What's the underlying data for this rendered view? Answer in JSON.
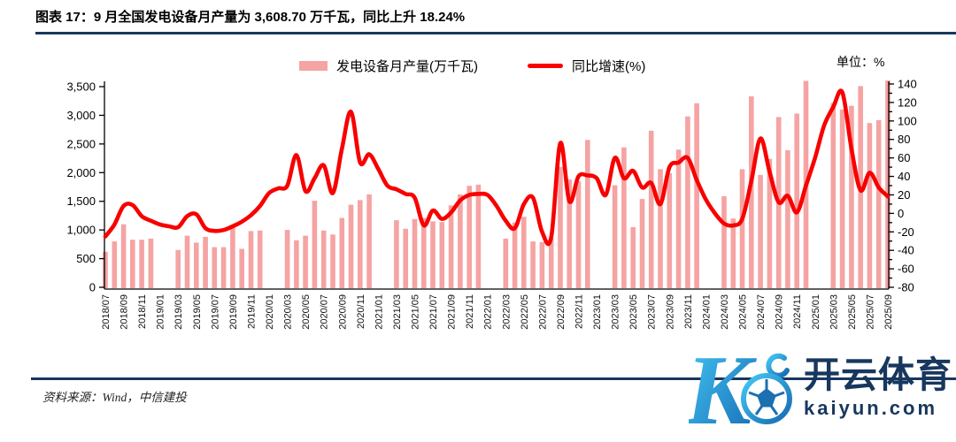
{
  "title": "图表 17：9 月全国发电设备月产量为 3,608.70  万千瓦，同比上升 18.24%",
  "legend": {
    "bar_label": "发电设备月产量(万千瓦)",
    "line_label": "同比增速(%)"
  },
  "right_axis_unit": "单位：%",
  "source": "资料来源：Wind，中信建投",
  "watermark": {
    "cn": "开云体育",
    "domain": "kaiyun.com"
  },
  "chart_data": {
    "type": "bar+line",
    "title": "9月全国发电设备月产量为3,608.70万千瓦，同比上升18.24%",
    "legend_position": "top-center",
    "grid": false,
    "x_label_every": 2,
    "months": [
      "2018/07",
      "2018/08",
      "2018/09",
      "2018/10",
      "2018/11",
      "2018/12",
      "2019/01",
      "2019/02",
      "2019/03",
      "2019/04",
      "2019/05",
      "2019/06",
      "2019/07",
      "2019/08",
      "2019/09",
      "2019/10",
      "2019/11",
      "2019/12",
      "2020/01",
      "2020/02",
      "2020/03",
      "2020/04",
      "2020/05",
      "2020/06",
      "2020/07",
      "2020/08",
      "2020/09",
      "2020/10",
      "2020/11",
      "2020/12",
      "2021/01",
      "2021/02",
      "2021/03",
      "2021/04",
      "2021/05",
      "2021/06",
      "2021/07",
      "2021/08",
      "2021/09",
      "2021/10",
      "2021/11",
      "2021/12",
      "2022/01",
      "2022/02",
      "2022/03",
      "2022/04",
      "2022/05",
      "2022/06",
      "2022/07",
      "2022/08",
      "2022/09",
      "2022/10",
      "2022/11",
      "2022/12",
      "2023/01",
      "2023/02",
      "2023/03",
      "2023/04",
      "2023/05",
      "2023/06",
      "2023/07",
      "2023/08",
      "2023/09",
      "2023/10",
      "2023/11",
      "2023/12",
      "2024/01",
      "2024/02",
      "2024/03",
      "2024/04",
      "2024/05",
      "2024/06",
      "2024/07",
      "2024/08",
      "2024/09",
      "2024/10",
      "2024/11",
      "2024/12",
      "2025/01",
      "2025/02",
      "2025/03",
      "2025/04",
      "2025/05",
      "2025/06",
      "2025/07",
      "2025/08",
      "2025/09"
    ],
    "bar_series": {
      "name": "发电设备月产量(万千瓦)",
      "values": [
        620,
        800,
        1100,
        830,
        830,
        850,
        null,
        null,
        650,
        900,
        780,
        880,
        700,
        700,
        1050,
        670,
        980,
        990,
        null,
        null,
        1000,
        820,
        900,
        1510,
        990,
        920,
        1210,
        1440,
        1520,
        1620,
        null,
        null,
        1170,
        1020,
        1190,
        1210,
        1150,
        1140,
        1430,
        1620,
        1770,
        1790,
        null,
        null,
        850,
        1130,
        1230,
        800,
        790,
        850,
        2100,
        1880,
        1850,
        2570,
        null,
        null,
        1780,
        2440,
        1050,
        1540,
        2730,
        2060,
        1990,
        2400,
        2980,
        3210,
        null,
        null,
        1590,
        1200,
        2060,
        3330,
        1960,
        2240,
        2970,
        2390,
        3030,
        3600,
        null,
        null,
        3215,
        3100,
        3165,
        3510,
        2865,
        2915,
        3608.7
      ]
    },
    "line_series": {
      "name": "同比增速(%)",
      "values": [
        -25,
        -12,
        8,
        9,
        -3,
        -8,
        -12,
        -14,
        -15,
        -3,
        -1,
        -16,
        -19,
        -18,
        -14,
        -9,
        -2,
        8,
        22,
        27,
        30,
        63,
        24,
        38,
        52,
        22,
        70,
        110,
        55,
        64,
        48,
        30,
        26,
        21,
        17,
        -13,
        3,
        -6,
        1,
        14,
        20,
        21,
        20,
        8,
        -8,
        -16,
        10,
        17,
        -20,
        -26,
        76,
        13,
        40,
        41,
        38,
        20,
        60,
        38,
        46,
        28,
        33,
        10,
        50,
        55,
        60,
        36,
        15,
        0,
        -11,
        -13,
        -6,
        35,
        81,
        45,
        12,
        19,
        1,
        30,
        60,
        95,
        115,
        131,
        70,
        25,
        44,
        28,
        18.24
      ]
    },
    "left_axis": {
      "min": 0,
      "max": 3500,
      "step": 500,
      "tick_labels": [
        "0",
        "500",
        "1,000",
        "1,500",
        "2,000",
        "2,500",
        "3,000",
        "3,500"
      ]
    },
    "right_axis": {
      "min": -80,
      "max": 140,
      "step": 20,
      "unit": "单位：%",
      "tick_labels": [
        "-80",
        "-60",
        "-40",
        "-20",
        "0",
        "20",
        "40",
        "60",
        "80",
        "100",
        "120",
        "140"
      ]
    },
    "colors": {
      "bar": "#F5A3A3",
      "line": "#F80000",
      "axis": "#000000",
      "rule": "#17375E"
    }
  }
}
